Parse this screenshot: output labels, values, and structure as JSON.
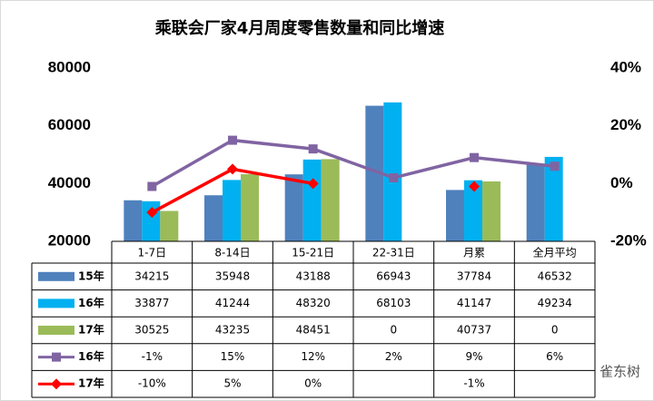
{
  "chart_data": {
    "type": "bar",
    "title": "乘联会厂家4月周度零售数量和同比增速",
    "categories": [
      "1-7日",
      "8-14日",
      "15-21日",
      "22-31日",
      "月累",
      "全月平均"
    ],
    "series": [
      {
        "name": "15年",
        "type": "bar",
        "color": "#4f81bd",
        "values": [
          34215,
          35948,
          43188,
          66943,
          37784,
          46532
        ]
      },
      {
        "name": "16年",
        "type": "bar",
        "color": "#00b0f0",
        "values": [
          33877,
          41244,
          48320,
          68103,
          41147,
          49234
        ]
      },
      {
        "name": "17年",
        "type": "bar",
        "color": "#9bbb59",
        "values": [
          30525,
          43235,
          48451,
          0,
          40737,
          0
        ]
      },
      {
        "name": "16年",
        "type": "line",
        "axis": "y2",
        "color": "#8064a2",
        "marker": "square",
        "values": [
          -1,
          15,
          12,
          2,
          9,
          6
        ],
        "value_labels": [
          "-1%",
          "15%",
          "12%",
          "2%",
          "9%",
          "6%"
        ]
      },
      {
        "name": "17年",
        "type": "line",
        "axis": "y2",
        "color": "#ff0000",
        "marker": "diamond",
        "values": [
          -10,
          5,
          0,
          null,
          -1,
          null
        ],
        "value_labels": [
          "-10%",
          "5%",
          "0%",
          null,
          "-1%",
          null
        ]
      }
    ],
    "ylim": [
      20000,
      80000
    ],
    "yticks": [
      20000,
      40000,
      60000,
      80000
    ],
    "y2lim": [
      -20,
      40
    ],
    "y2ticks": [
      {
        "value": -20,
        "label": "-20%"
      },
      {
        "value": 0,
        "label": "0%"
      },
      {
        "value": 20,
        "label": "20%"
      },
      {
        "value": 40,
        "label": "40%"
      }
    ],
    "watermark": "雀东树"
  }
}
